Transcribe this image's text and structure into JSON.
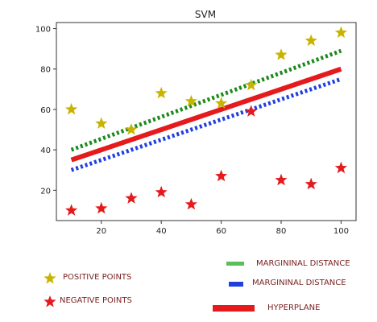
{
  "chart_data": {
    "type": "scatter",
    "title": "SVM",
    "xlabel": "",
    "ylabel": "",
    "xlim": [
      5,
      105
    ],
    "ylim": [
      5,
      103
    ],
    "xticks": [
      20,
      40,
      60,
      80,
      100
    ],
    "yticks": [
      20,
      40,
      60,
      80,
      100
    ],
    "grid": false,
    "series": [
      {
        "name": "POSITIVE POINTS",
        "kind": "points",
        "marker": "star",
        "color": "#c8b400",
        "x": [
          10,
          20,
          30,
          40,
          50,
          60,
          70,
          80,
          90,
          100
        ],
        "y": [
          60,
          53,
          50,
          68,
          64,
          63,
          72,
          87,
          94,
          98
        ]
      },
      {
        "name": "NEGATIVE POINTS",
        "kind": "points",
        "marker": "star",
        "color": "#e41a1c",
        "x": [
          10,
          20,
          30,
          40,
          50,
          60,
          70,
          80,
          90,
          100
        ],
        "y": [
          10,
          11,
          16,
          19,
          13,
          27,
          59,
          25,
          23,
          31
        ]
      },
      {
        "name": "MARGININAL DISTANCE",
        "kind": "line",
        "style": "dotted",
        "color": "#1a8a1a",
        "x": [
          10,
          100
        ],
        "y": [
          40,
          89
        ]
      },
      {
        "name": "MARGININAL DISTANCE",
        "kind": "line",
        "style": "dotted",
        "color": "#1f3fe0",
        "x": [
          10,
          100
        ],
        "y": [
          30,
          75
        ]
      },
      {
        "name": "HYPERPLANE",
        "kind": "line",
        "style": "solid",
        "color": "#e41a1c",
        "x": [
          10,
          100
        ],
        "y": [
          35,
          80
        ]
      }
    ]
  },
  "legend": {
    "positive_label": "POSITIVE POINTS",
    "negative_label": "NEGATIVE POINTS",
    "margin_green_label": "MARGININAL DISTANCE",
    "margin_blue_label": "MARGININAL DISTANCE",
    "hyperplane_label": "HYPERPLANE"
  }
}
